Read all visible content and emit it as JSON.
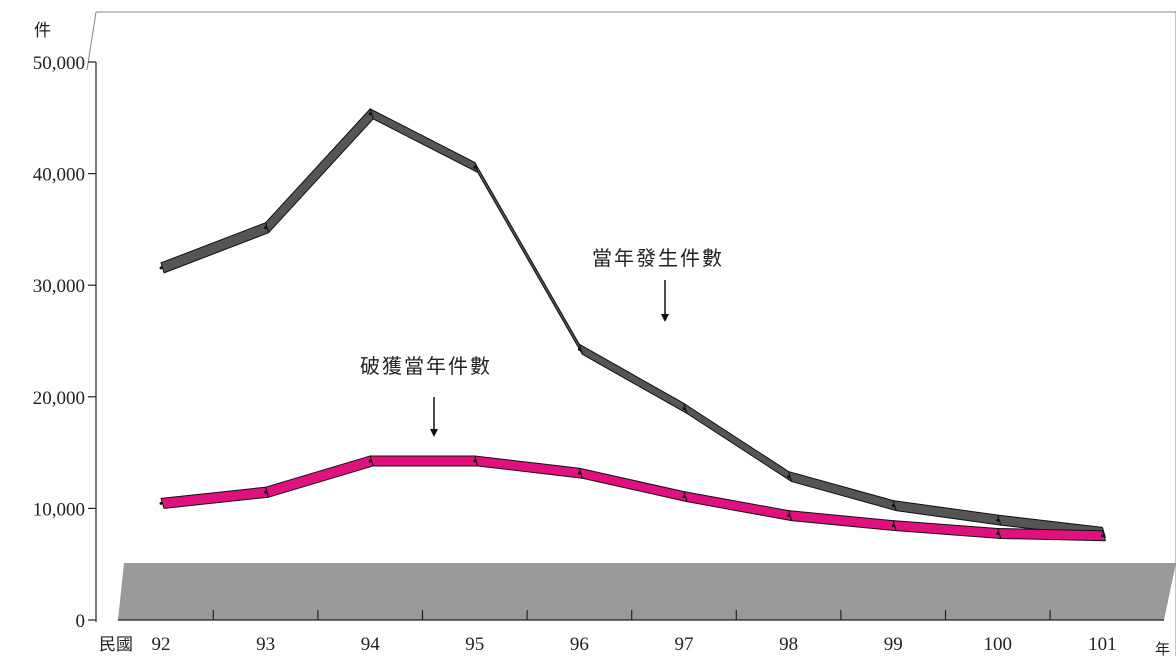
{
  "chart_data": {
    "type": "line",
    "ylabel": "件",
    "x_prefix": "民國",
    "xlabel": "年",
    "categories": [
      "92",
      "93",
      "94",
      "95",
      "96",
      "97",
      "98",
      "99",
      "100",
      "101"
    ],
    "y_tick_labels": [
      "0",
      "10,000",
      "20,000",
      "30,000",
      "40,000",
      "50,000"
    ],
    "ylim": [
      0,
      50000
    ],
    "grid": false,
    "series": [
      {
        "name": "當年發生件數",
        "color": "#555555",
        "values": [
          32000,
          35600,
          45800,
          41000,
          24700,
          19400,
          13300,
          10700,
          9400,
          8300
        ]
      },
      {
        "name": "破獲當年件數",
        "color": "#e0117f",
        "values": [
          10900,
          11900,
          14700,
          14700,
          13600,
          11500,
          9800,
          8900,
          8200,
          8000
        ]
      }
    ],
    "annotations": [
      {
        "text": "當年發生件數",
        "series": 0
      },
      {
        "text": "破獲當年件數",
        "series": 1
      }
    ],
    "floor_color": "#999999"
  }
}
